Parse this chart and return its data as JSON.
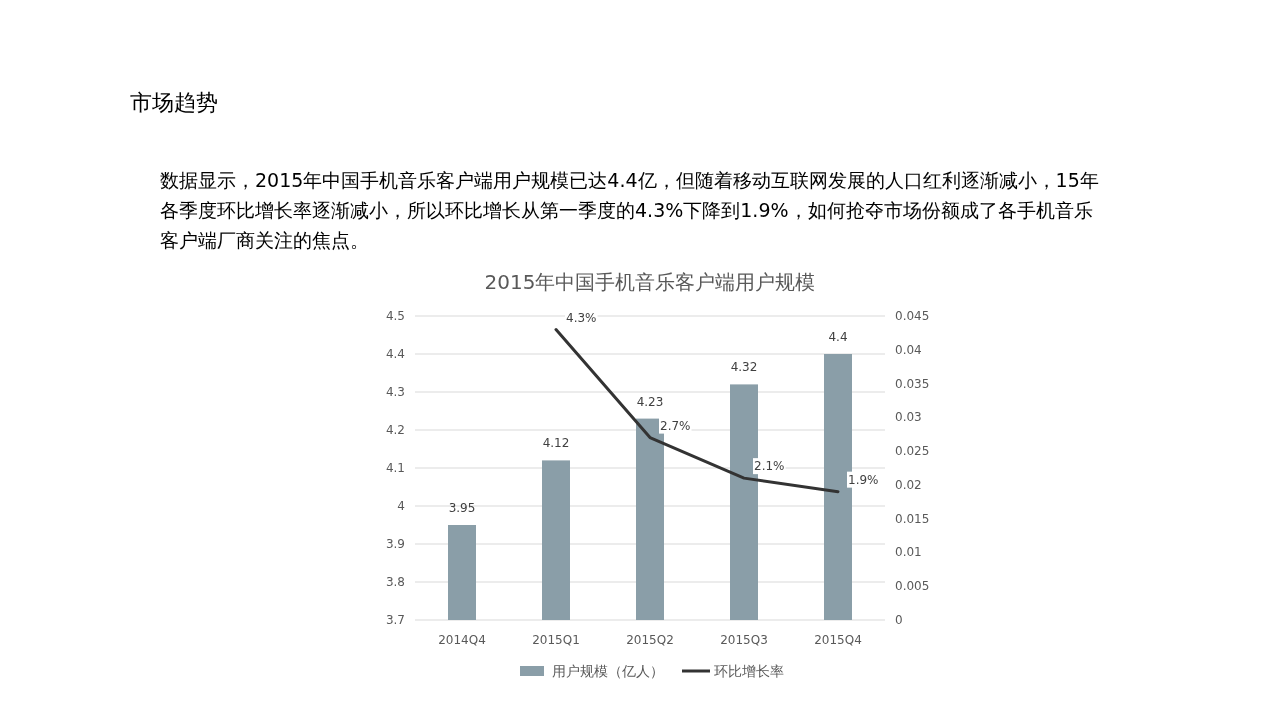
{
  "chart_data": {
    "type": "bar",
    "title": "2015年中国手机音乐客户端用户规模",
    "annotations": [
      "市场趋势",
      "数据显示，2015年中国手机音乐客户端用户规模已达4.4亿，但随着移动互联网发展的人口红利逐渐减小，15年各季度环比增长率逐渐减小，所以环比增长从第一季度的4.3%下降到1.9%，如何抢夺市场份额成了各手机音乐客户端厂商关注的焦点。"
    ],
    "categories": [
      "2014Q4",
      "2015Q1",
      "2015Q2",
      "2015Q3",
      "2015Q4"
    ],
    "series": [
      {
        "name": "用户规模（亿人）",
        "color": "#8a9ea8",
        "values": [
          3.95,
          4.12,
          4.23,
          4.32,
          4.4
        ],
        "value_labels": [
          "3.95",
          "4.12",
          "4.23",
          "4.32",
          "4.4"
        ]
      },
      {
        "name": "环比增长率",
        "type": "line",
        "axis": "y2",
        "color": "#333333",
        "values": [
          null,
          0.043,
          0.027,
          0.021,
          0.019
        ],
        "value_labels": [
          null,
          "4.3%",
          "2.7%",
          "2.1%",
          "1.9%"
        ]
      }
    ],
    "ylim": [
      3.7,
      4.5
    ],
    "yticks": [
      3.7,
      3.8,
      3.9,
      4,
      4.1,
      4.2,
      4.3,
      4.4,
      4.5
    ],
    "y2lim": [
      0,
      0.045
    ],
    "y2ticks": [
      0,
      0.005,
      0.01,
      0.015,
      0.02,
      0.025,
      0.03,
      0.035,
      0.04,
      0.045
    ],
    "grid": "y",
    "legend": "bottom",
    "marker": "none",
    "line_style": "solid"
  }
}
